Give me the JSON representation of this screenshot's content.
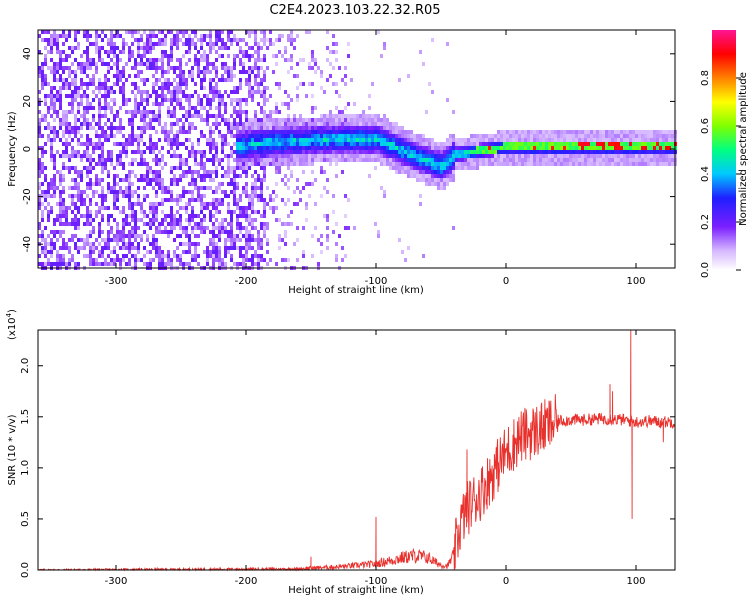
{
  "title": "C2E4.2023.103.22.32.R05",
  "chart_data": [
    {
      "type": "heatmap",
      "xlabel": "Height of straight line (km)",
      "ylabel": "Frequency (Hz)",
      "xlim": [
        -360,
        130
      ],
      "ylim": [
        -50,
        50
      ],
      "xticks": [
        -300,
        -200,
        -100,
        0,
        100
      ],
      "yticks": [
        -40,
        -20,
        0,
        20,
        40
      ],
      "colorbar": {
        "label": "Normalized spectral amplitude",
        "range": [
          0.0,
          1.0
        ],
        "ticks": [
          0.0,
          0.2,
          0.4,
          0.6,
          0.8
        ]
      },
      "grid": false
    },
    {
      "type": "line",
      "xlabel": "Height of straight line (km)",
      "ylabel": "SNR (10 * v/v)",
      "y_scale_label": "(x10",
      "y_scale_exp": "4",
      "y_scale_close": ")",
      "xlim": [
        -360,
        130
      ],
      "ylim": [
        0.0,
        2.35
      ],
      "xticks": [
        -300,
        -200,
        -100,
        0,
        100
      ],
      "yticks": [
        "0.0",
        "0.5",
        "1.0",
        "1.5",
        "2.0"
      ],
      "color": "#e8302c",
      "grid": false,
      "series_trend": {
        "x": [
          -360,
          -160,
          -150,
          -130,
          -120,
          -100,
          -90,
          -80,
          -70,
          -60,
          -55,
          -50,
          -45,
          -40,
          -35,
          -30,
          -25,
          -20,
          -15,
          -10,
          -5,
          0,
          5,
          10,
          20,
          30,
          40,
          50,
          60,
          70,
          80,
          90,
          95,
          100,
          110,
          120,
          130
        ],
        "y": [
          0.0,
          0.01,
          0.02,
          0.03,
          0.04,
          0.06,
          0.09,
          0.12,
          0.14,
          0.12,
          0.08,
          0.05,
          0.04,
          0.15,
          0.45,
          0.6,
          0.68,
          0.75,
          0.85,
          0.95,
          1.05,
          1.15,
          1.22,
          1.3,
          1.35,
          1.4,
          1.46,
          1.47,
          1.47,
          1.48,
          1.48,
          1.47,
          1.46,
          1.45,
          1.46,
          1.45,
          1.45
        ]
      },
      "spikes": [
        {
          "x": 96,
          "y": 2.35
        },
        {
          "x": 97,
          "y": 0.5
        },
        {
          "x": 80,
          "y": 1.82
        },
        {
          "x": 82,
          "y": 1.75
        },
        {
          "x": -30,
          "y": 1.18
        },
        {
          "x": -150,
          "y": 0.13
        },
        {
          "x": -100,
          "y": 0.52
        },
        {
          "x": 121,
          "y": 1.25
        }
      ]
    }
  ]
}
